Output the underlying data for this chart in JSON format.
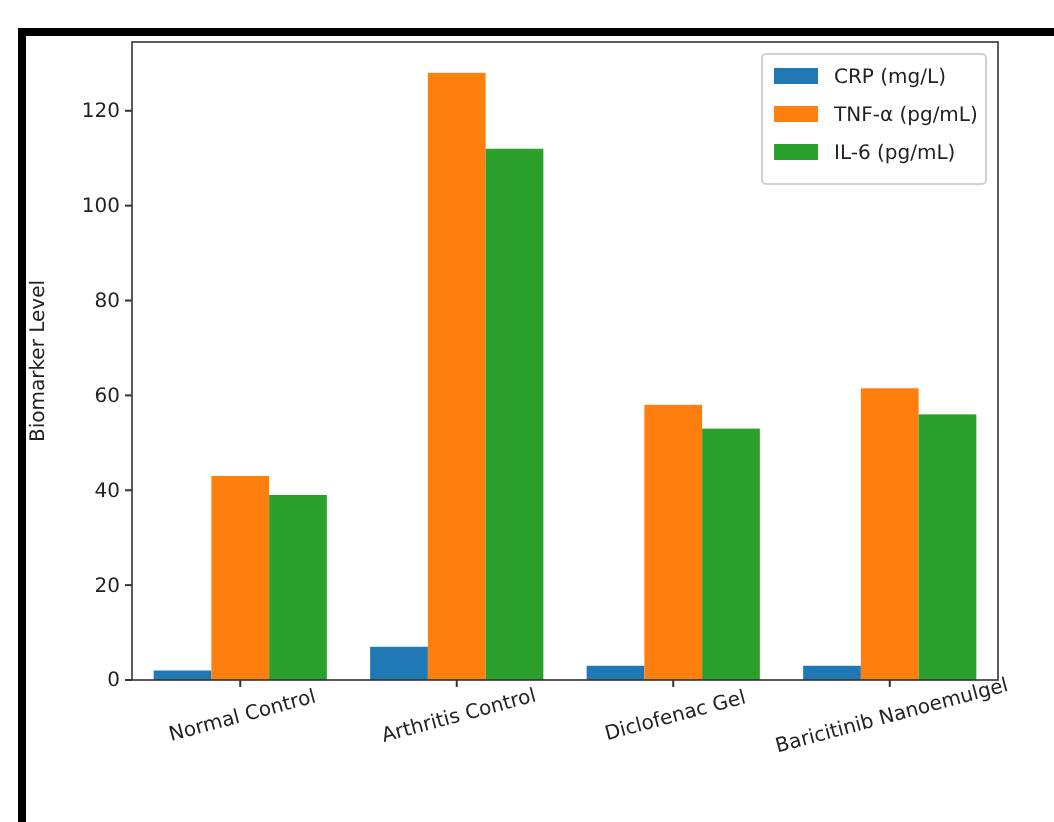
{
  "chart_data": {
    "type": "bar",
    "ylabel": "Biomarker Level",
    "categories": [
      "Normal Control",
      "Arthritis Control",
      "Diclofenac Gel",
      "Baricitinib Nanoemulgel"
    ],
    "series": [
      {
        "name": "CRP (mg/L)",
        "color": "#1f77b4",
        "values": [
          2,
          7,
          3,
          3
        ]
      },
      {
        "name": "TNF-α (pg/mL)",
        "color": "#ff7f0e",
        "values": [
          43,
          128,
          58,
          61.5
        ]
      },
      {
        "name": "IL-6 (pg/mL)",
        "color": "#2ca02c",
        "values": [
          39,
          112,
          53,
          56
        ]
      }
    ],
    "ylim": [
      0,
      134.5
    ],
    "yticks": [
      0,
      20,
      40,
      60,
      80,
      100,
      120
    ],
    "grid": false,
    "legend": "top right"
  }
}
